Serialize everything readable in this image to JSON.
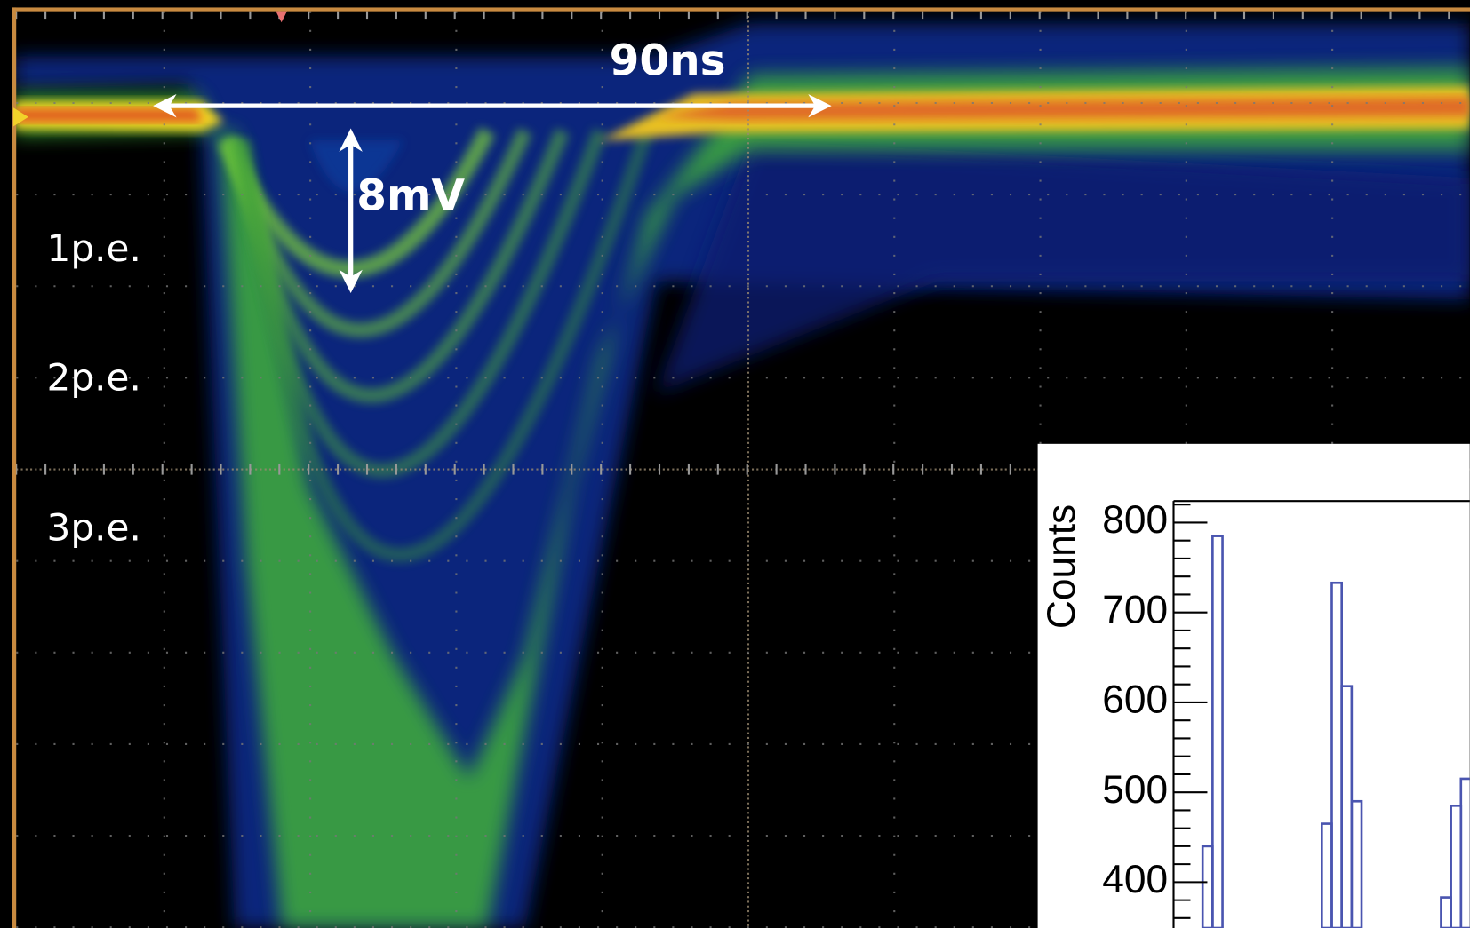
{
  "annotations": {
    "time_span": "90ns",
    "amplitude": "8mV",
    "levels": [
      "1p.e.",
      "2p.e.",
      "3p.e."
    ]
  },
  "chart_data": {
    "type": "bar",
    "y_label": "Counts",
    "categories": [
      null,
      null,
      null,
      null,
      null,
      null,
      null,
      null,
      null,
      null,
      null,
      null,
      null,
      null,
      null,
      null,
      null,
      null,
      null,
      null,
      null,
      null,
      null,
      null,
      null,
      null,
      null
    ],
    "values": [
      440,
      785,
      null,
      null,
      null,
      null,
      null,
      null,
      null,
      null,
      null,
      null,
      465,
      733,
      618,
      490,
      null,
      null,
      null,
      null,
      null,
      null,
      null,
      null,
      383,
      485,
      515
    ],
    "color": "#4a55b0",
    "ylim": [
      349,
      824
    ],
    "yticks": [
      400,
      500,
      600,
      700,
      800
    ]
  }
}
